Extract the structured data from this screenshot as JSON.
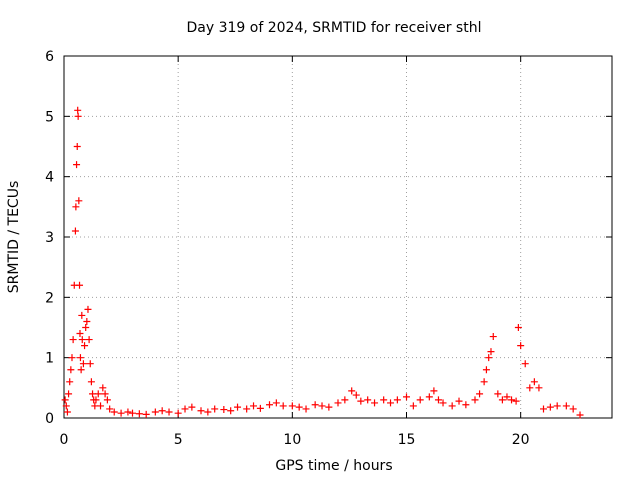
{
  "chart_data": {
    "type": "scatter",
    "title": "Day 319 of 2024, SRMTID for receiver sthl",
    "xlabel": "GPS time / hours",
    "ylabel": "SRMTID / TECUs",
    "xlim": [
      0,
      24
    ],
    "ylim": [
      0,
      6
    ],
    "xticks": [
      0,
      5,
      10,
      15,
      20
    ],
    "yticks": [
      0,
      1,
      2,
      3,
      4,
      5,
      6
    ],
    "grid": true,
    "marker": "plus",
    "colors": {
      "marker": "#ff0000",
      "axis": "#000000",
      "grid": "#a0a0a0"
    },
    "series": [
      {
        "x": [
          0.05,
          0.1,
          0.15,
          0.2,
          0.25,
          0.3,
          0.35,
          0.4,
          0.45,
          0.5,
          0.52,
          0.55,
          0.58,
          0.6,
          0.62,
          0.65,
          0.68,
          0.7,
          0.72,
          0.75,
          0.78,
          0.8,
          0.85,
          0.9,
          0.95,
          1.0,
          1.05,
          1.1,
          1.15,
          1.2,
          1.25,
          1.3,
          1.35,
          1.4,
          1.5,
          1.6,
          1.7,
          1.8,
          1.9,
          2.0,
          2.2,
          2.5,
          2.8,
          3.0,
          3.3,
          3.6,
          4.0,
          4.3,
          4.6,
          5.0,
          5.3,
          5.6,
          6.0,
          6.3,
          6.6,
          7.0,
          7.3,
          7.6,
          8.0,
          8.3,
          8.6,
          9.0,
          9.3,
          9.6,
          10.0,
          10.3,
          10.6,
          11.0,
          11.3,
          11.6,
          12.0,
          12.3,
          12.6,
          12.8,
          13.0,
          13.3,
          13.6,
          14.0,
          14.3,
          14.6,
          15.0,
          15.3,
          15.6,
          16.0,
          16.2,
          16.4,
          16.6,
          17.0,
          17.3,
          17.6,
          18.0,
          18.2,
          18.4,
          18.5,
          18.6,
          18.7,
          18.8,
          19.0,
          19.2,
          19.4,
          19.6,
          19.8,
          19.9,
          20.0,
          20.2,
          20.4,
          20.6,
          20.8,
          21.0,
          21.3,
          21.6,
          22.0,
          22.3,
          22.6
        ],
        "y": [
          0.3,
          0.2,
          0.1,
          0.4,
          0.6,
          0.8,
          1.0,
          1.3,
          2.2,
          3.1,
          3.5,
          4.2,
          4.5,
          5.1,
          5.0,
          3.6,
          2.2,
          1.4,
          1.0,
          0.8,
          1.7,
          1.3,
          0.9,
          1.2,
          1.5,
          1.6,
          1.8,
          1.3,
          0.9,
          0.6,
          0.4,
          0.3,
          0.2,
          0.3,
          0.4,
          0.2,
          0.5,
          0.4,
          0.3,
          0.15,
          0.1,
          0.08,
          0.1,
          0.08,
          0.07,
          0.06,
          0.1,
          0.12,
          0.1,
          0.08,
          0.15,
          0.18,
          0.12,
          0.1,
          0.15,
          0.14,
          0.12,
          0.18,
          0.15,
          0.2,
          0.16,
          0.22,
          0.25,
          0.2,
          0.2,
          0.18,
          0.15,
          0.22,
          0.2,
          0.18,
          0.25,
          0.3,
          0.45,
          0.38,
          0.28,
          0.3,
          0.25,
          0.3,
          0.25,
          0.3,
          0.35,
          0.2,
          0.3,
          0.35,
          0.45,
          0.3,
          0.25,
          0.2,
          0.28,
          0.22,
          0.3,
          0.4,
          0.6,
          0.8,
          1.0,
          1.1,
          1.35,
          0.4,
          0.3,
          0.35,
          0.3,
          0.28,
          1.5,
          1.2,
          0.9,
          0.5,
          0.6,
          0.5,
          0.15,
          0.18,
          0.2,
          0.2,
          0.15,
          0.05
        ]
      }
    ]
  }
}
